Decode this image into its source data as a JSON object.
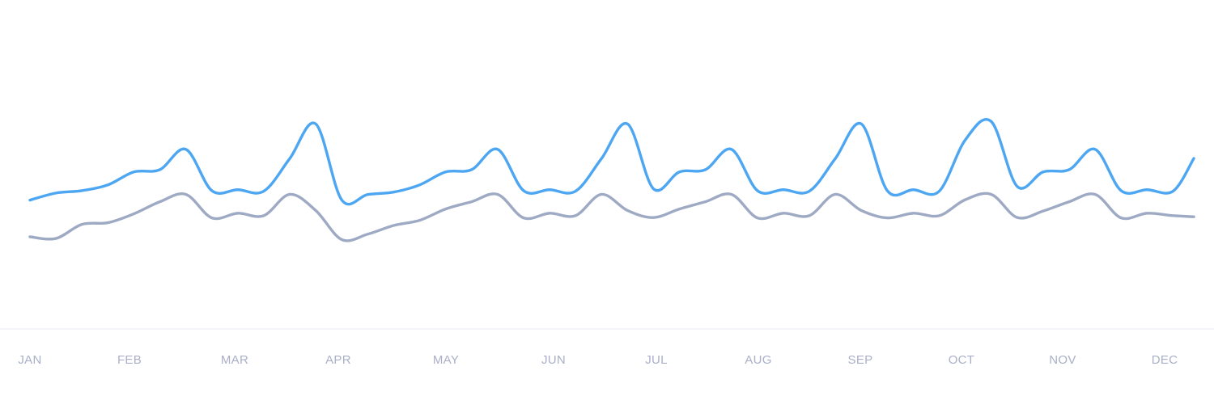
{
  "chart_data": {
    "type": "line",
    "categories": [
      "JAN",
      "FEB",
      "MAR",
      "APR",
      "MAY",
      "JUN",
      "JUL",
      "AUG",
      "SEP",
      "OCT",
      "NOV",
      "DEC"
    ],
    "x": [
      0.0,
      0.25,
      0.5,
      0.75,
      1.0,
      1.25,
      1.5,
      1.75,
      2.0,
      2.25,
      2.5,
      2.75,
      3.0,
      3.25,
      3.5,
      3.75,
      4.0,
      4.25,
      4.5,
      4.75,
      5.0,
      5.25,
      5.5,
      5.75,
      6.0,
      6.25,
      6.5,
      6.75,
      7.0,
      7.25,
      7.5,
      7.75,
      8.0,
      8.25,
      8.5,
      8.75,
      9.0,
      9.25,
      9.5,
      9.75,
      10.0,
      10.25,
      10.5,
      10.75,
      11.0,
      11.2
    ],
    "series": [
      {
        "color": "#4da6f2",
        "values": [
          69.5,
          73.3,
          74.6,
          77.7,
          84.7,
          85.9,
          96.9,
          74.6,
          75.1,
          74.3,
          91.9,
          110.6,
          69.6,
          72.5,
          73.8,
          77.7,
          84.7,
          85.9,
          96.9,
          74.6,
          75.1,
          74.3,
          91.9,
          110.6,
          75.6,
          84.7,
          85.9,
          96.9,
          74.6,
          75.1,
          74.3,
          91.9,
          110.6,
          74.6,
          75.1,
          74.3,
          101.9,
          111.9,
          76.9,
          84.7,
          85.9,
          96.9,
          74.6,
          75.1,
          74.3,
          92.0
        ]
      },
      {
        "color": "#9eaac4",
        "values": [
          49.7,
          48.8,
          56.4,
          57.3,
          62.1,
          68.6,
          72.6,
          59.9,
          62.4,
          61.1,
          72.6,
          63.9,
          48.2,
          51.1,
          55.8,
          58.6,
          64.7,
          68.6,
          72.6,
          59.9,
          62.4,
          61.1,
          72.6,
          63.9,
          60.1,
          64.7,
          68.6,
          72.6,
          59.9,
          62.4,
          61.1,
          72.6,
          63.9,
          59.9,
          62.4,
          61.1,
          69.7,
          72.6,
          60.1,
          63.6,
          68.6,
          72.6,
          59.9,
          62.4,
          61.1,
          60.5
        ]
      }
    ],
    "ylim": [
      0,
      160
    ],
    "grid": false,
    "legend": "none"
  }
}
